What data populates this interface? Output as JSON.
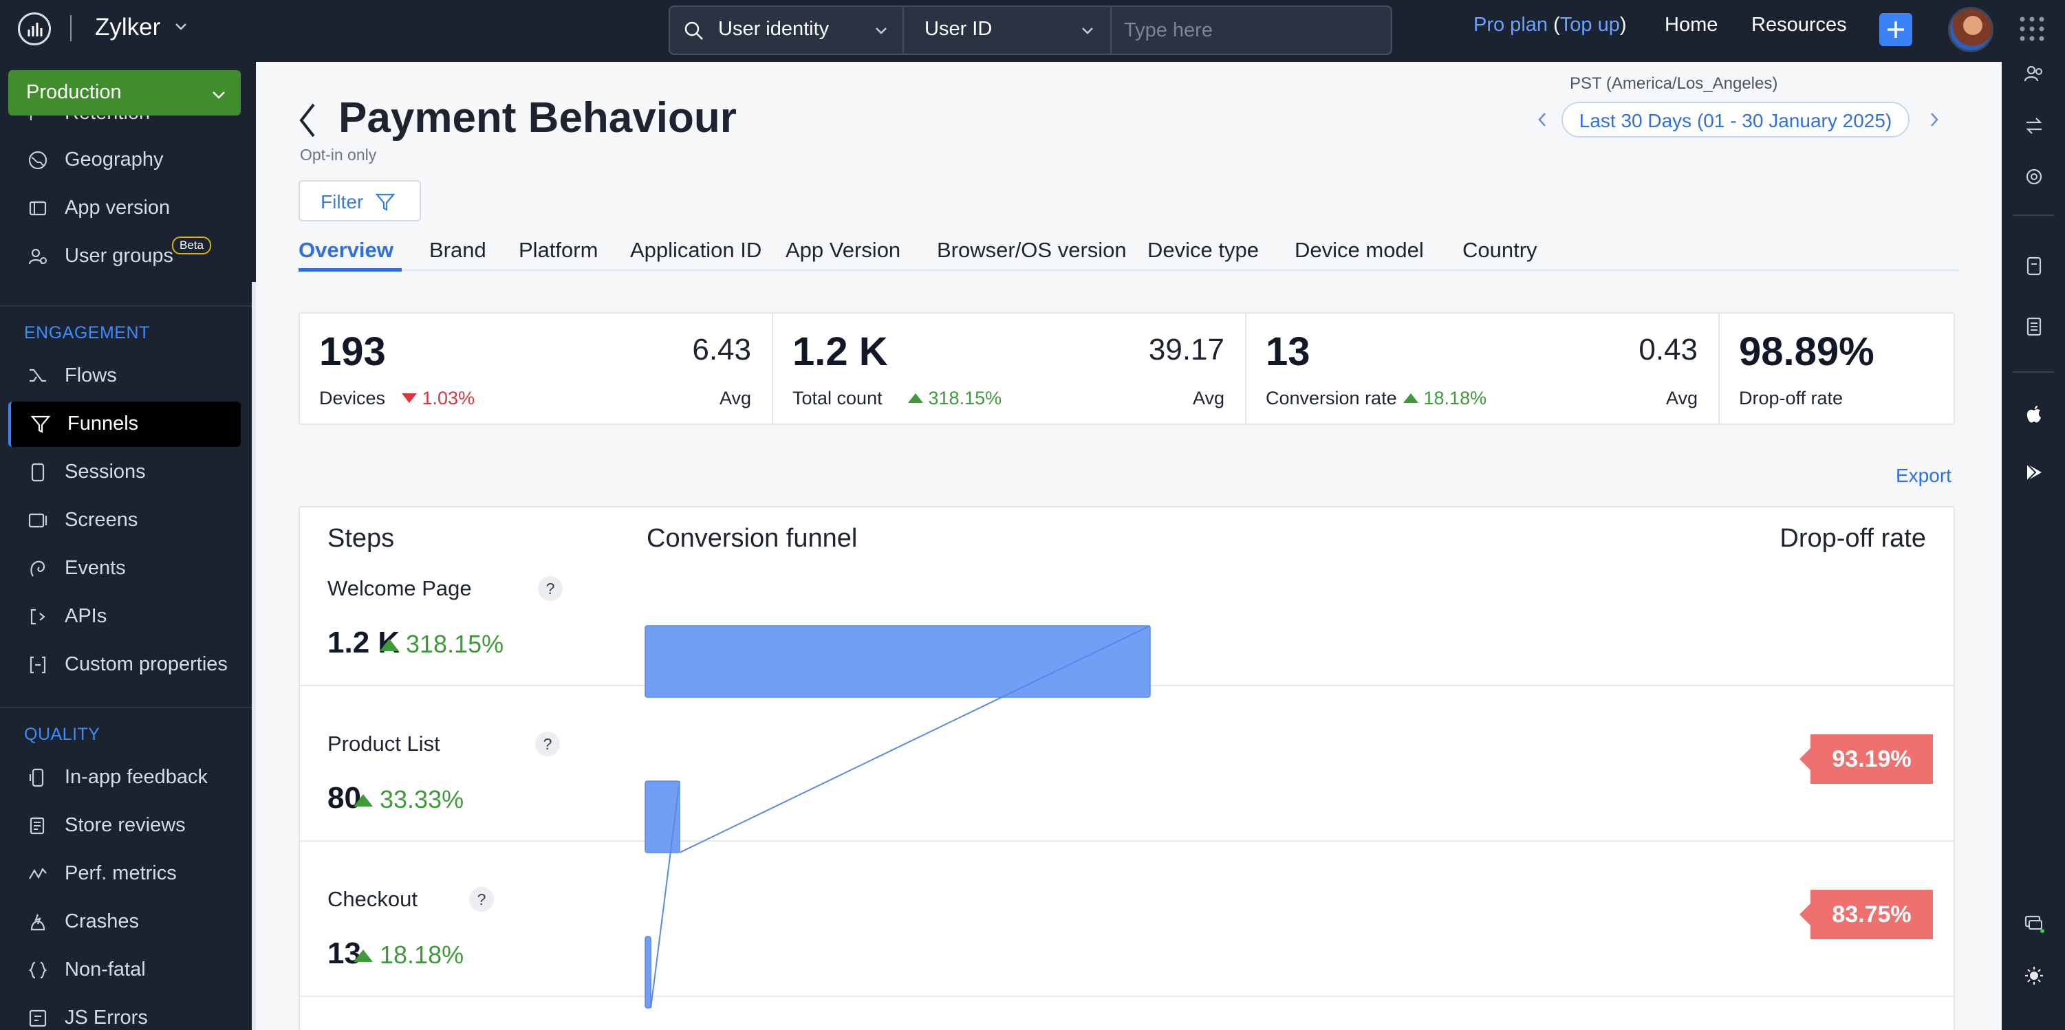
{
  "app": {
    "brand": "Zylker",
    "search": {
      "identity_select": "User identity",
      "field_select": "User ID",
      "placeholder": "Type here"
    },
    "plan": {
      "label": "Pro plan",
      "open": "(",
      "link": "Top up",
      "close": ")"
    },
    "nav": {
      "home": "Home",
      "resources": "Resources"
    }
  },
  "sidebar": {
    "environment": "Production",
    "items_top": [
      {
        "label": "Retention",
        "icon": "retention-icon"
      },
      {
        "label": "Geography",
        "icon": "globe-icon"
      },
      {
        "label": "App version",
        "icon": "app-version-icon"
      },
      {
        "label": "User groups",
        "icon": "users-icon",
        "badge": "Beta"
      }
    ],
    "engagement_heading": "ENGAGEMENT",
    "engagement": [
      {
        "label": "Flows",
        "icon": "flows-icon"
      },
      {
        "label": "Funnels",
        "icon": "funnel-icon",
        "active": true
      },
      {
        "label": "Sessions",
        "icon": "sessions-icon"
      },
      {
        "label": "Screens",
        "icon": "screens-icon"
      },
      {
        "label": "Events",
        "icon": "events-icon"
      },
      {
        "label": "APIs",
        "icon": "api-icon"
      },
      {
        "label": "Custom properties",
        "icon": "custom-properties-icon"
      }
    ],
    "quality_heading": "QUALITY",
    "quality": [
      {
        "label": "In-app feedback",
        "icon": "feedback-icon"
      },
      {
        "label": "Store reviews",
        "icon": "store-reviews-icon"
      },
      {
        "label": "Perf. metrics",
        "icon": "perf-metrics-icon"
      },
      {
        "label": "Crashes",
        "icon": "crash-icon"
      },
      {
        "label": "Non-fatal",
        "icon": "non-fatal-icon"
      },
      {
        "label": "JS Errors",
        "icon": "js-errors-icon"
      }
    ]
  },
  "page": {
    "title": "Payment Behaviour",
    "subtitle": "Opt-in only",
    "timezone": "PST (America/Los_Angeles)",
    "date_range": "Last 30 Days (01 - 30 January 2025)",
    "filter_label": "Filter",
    "export_label": "Export",
    "tabs": [
      "Overview",
      "Brand",
      "Platform",
      "Application ID",
      "App Version",
      "Browser/OS version",
      "Device type",
      "Device model",
      "Country"
    ],
    "active_tab": "Overview"
  },
  "kpis": [
    {
      "value": "193",
      "label": "Devices",
      "delta": "1.03%",
      "trend": "down",
      "avg": "6.43",
      "avg_label": "Avg"
    },
    {
      "value": "1.2 K",
      "label": "Total count",
      "delta": "318.15%",
      "trend": "up",
      "avg": "39.17",
      "avg_label": "Avg"
    },
    {
      "value": "13",
      "label": "Conversion rate",
      "delta": "18.18%",
      "trend": "up",
      "avg": "0.43",
      "avg_label": "Avg"
    },
    {
      "value": "98.89%",
      "label": "Drop-off rate"
    }
  ],
  "funnel": {
    "headers": {
      "steps": "Steps",
      "funnel": "Conversion funnel",
      "dropoff": "Drop-off rate"
    },
    "help_glyph": "?",
    "steps": [
      {
        "name": "Welcome Page",
        "count": "1.2 K",
        "delta": "318.15%",
        "bar_fraction": 1.0,
        "dropoff": "93.19%"
      },
      {
        "name": "Product List",
        "count": "80",
        "delta": "33.33%",
        "bar_fraction": 0.068,
        "dropoff": "83.75%"
      },
      {
        "name": "Checkout",
        "count": "13",
        "delta": "18.18%",
        "bar_fraction": 0.011
      }
    ],
    "bar_color": "#739ef5"
  },
  "help_fab": "?"
}
